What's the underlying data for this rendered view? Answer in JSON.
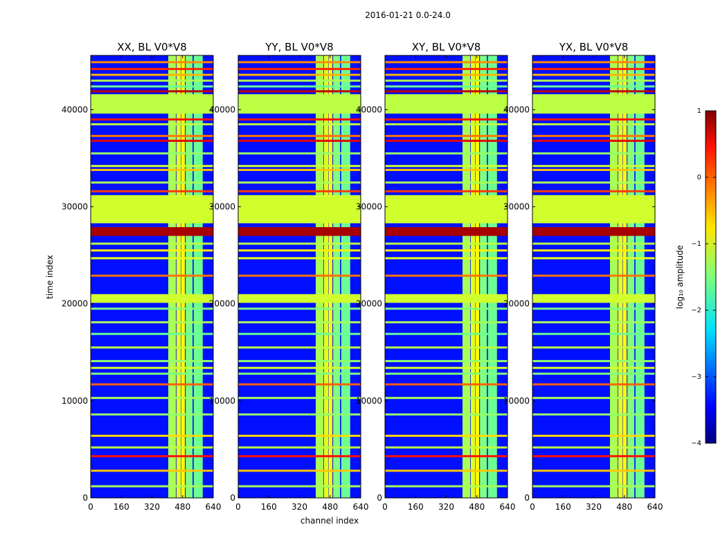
{
  "chart_data": {
    "type": "heatmap",
    "suptitle": "2016-01-21 0.0-24.0",
    "xlabel": "channel index",
    "ylabel": "time index",
    "panels": [
      {
        "title": "XX, BL V0*V8"
      },
      {
        "title": "YY, BL V0*V8"
      },
      {
        "title": "XY, BL V0*V8"
      },
      {
        "title": "YX, BL V0*V8"
      }
    ],
    "x_ticks": [
      0,
      160,
      320,
      480,
      640
    ],
    "y_ticks": [
      0,
      10000,
      20000,
      30000,
      40000
    ],
    "xlim": [
      0,
      640
    ],
    "ylim": [
      0,
      45600
    ],
    "colorbar": {
      "label": "log₁₀ amplitude",
      "range": [
        -4,
        1
      ],
      "ticks": [
        1,
        0,
        -1,
        -2,
        -3,
        -4
      ],
      "tick_labels": [
        "1",
        "0",
        "−1",
        "−2",
        "−3",
        "−4"
      ],
      "colormap": "jet"
    },
    "background_level": -3.3,
    "signal_channel_bands": [
      {
        "channels": [
          405,
          445
        ],
        "level": -1.3
      },
      {
        "channels": [
          448,
          470
        ],
        "level": -1.0
      },
      {
        "channels": [
          472,
          492
        ],
        "level": -0.9
      },
      {
        "channels": [
          496,
          532
        ],
        "level": -1.5
      },
      {
        "channels": [
          538,
          585
        ],
        "level": -1.6
      }
    ],
    "flagged_time_ranges": [
      {
        "time": [
          39600,
          41600
        ],
        "level": -1.2
      },
      {
        "time": [
          28300,
          31200
        ],
        "level": -1.1
      },
      {
        "time": [
          20100,
          21000
        ],
        "level": -1.1
      },
      {
        "time": [
          27000,
          27900
        ],
        "level": 0.8
      }
    ],
    "horizontal_lines": [
      {
        "time": 44900,
        "level": -0.3
      },
      {
        "time": 44200,
        "level": 0.2
      },
      {
        "time": 43600,
        "level": -0.5
      },
      {
        "time": 43000,
        "level": -1.3
      },
      {
        "time": 42400,
        "level": -1.6
      },
      {
        "time": 41900,
        "level": 0.7
      },
      {
        "time": 39000,
        "level": 0.3
      },
      {
        "time": 38500,
        "level": -1.2
      },
      {
        "time": 37300,
        "level": -0.2
      },
      {
        "time": 36800,
        "level": 0.5
      },
      {
        "time": 35500,
        "level": -1.4
      },
      {
        "time": 34200,
        "level": -1.1
      },
      {
        "time": 33800,
        "level": -0.6
      },
      {
        "time": 32500,
        "level": -1.3
      },
      {
        "time": 31600,
        "level": 0.1
      },
      {
        "time": 26200,
        "level": -1.2
      },
      {
        "time": 25500,
        "level": -0.8
      },
      {
        "time": 24700,
        "level": -1.0
      },
      {
        "time": 22900,
        "level": -0.2
      },
      {
        "time": 19500,
        "level": -1.5
      },
      {
        "time": 18100,
        "level": -1.3
      },
      {
        "time": 16900,
        "level": -1.6
      },
      {
        "time": 15500,
        "level": -1.2
      },
      {
        "time": 14100,
        "level": -1.4
      },
      {
        "time": 13400,
        "level": -1.1
      },
      {
        "time": 12800,
        "level": -1.5
      },
      {
        "time": 11700,
        "level": -0.1
      },
      {
        "time": 10300,
        "level": -1.3
      },
      {
        "time": 8600,
        "level": -1.4
      },
      {
        "time": 6400,
        "level": -0.7
      },
      {
        "time": 5200,
        "level": -1.2
      },
      {
        "time": 4300,
        "level": 0.3
      },
      {
        "time": 2800,
        "level": -0.6
      },
      {
        "time": 1200,
        "level": -1.3
      }
    ]
  }
}
